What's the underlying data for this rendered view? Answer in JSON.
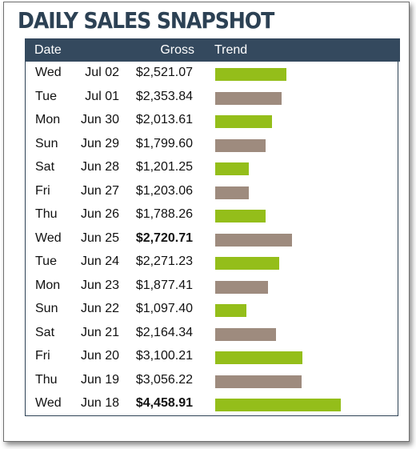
{
  "title": "DAILY SALES SNAPSHOT",
  "headers": {
    "date": "Date",
    "gross": "Gross",
    "trend": "Trend"
  },
  "colors": {
    "header_bg": "#34495e",
    "bar_green": "#94be1a",
    "bar_taupe": "#9e8b7e",
    "title": "#2c4154"
  },
  "chart_data": {
    "type": "table",
    "columns": [
      "Date",
      "Gross",
      "Trend"
    ],
    "rows": [
      {
        "day": "Wed",
        "date": "Jul 02",
        "gross": "$2,521.07",
        "value": 2521.07,
        "color": "green",
        "bold": false
      },
      {
        "day": "Tue",
        "date": "Jul 01",
        "gross": "$2,353.84",
        "value": 2353.84,
        "color": "taupe",
        "bold": false
      },
      {
        "day": "Mon",
        "date": "Jun 30",
        "gross": "$2,013.61",
        "value": 2013.61,
        "color": "green",
        "bold": false
      },
      {
        "day": "Sun",
        "date": "Jun 29",
        "gross": "$1,799.60",
        "value": 1799.6,
        "color": "taupe",
        "bold": false
      },
      {
        "day": "Sat",
        "date": "Jun 28",
        "gross": "$1,201.25",
        "value": 1201.25,
        "color": "green",
        "bold": false
      },
      {
        "day": "Fri",
        "date": "Jun 27",
        "gross": "$1,203.06",
        "value": 1203.06,
        "color": "taupe",
        "bold": false
      },
      {
        "day": "Thu",
        "date": "Jun 26",
        "gross": "$1,788.26",
        "value": 1788.26,
        "color": "green",
        "bold": false
      },
      {
        "day": "Wed",
        "date": "Jun 25",
        "gross": "$2,720.71",
        "value": 2720.71,
        "color": "taupe",
        "bold": true
      },
      {
        "day": "Tue",
        "date": "Jun 24",
        "gross": "$2,271.23",
        "value": 2271.23,
        "color": "green",
        "bold": false
      },
      {
        "day": "Mon",
        "date": "Jun 23",
        "gross": "$1,877.41",
        "value": 1877.41,
        "color": "taupe",
        "bold": false
      },
      {
        "day": "Sun",
        "date": "Jun 22",
        "gross": "$1,097.40",
        "value": 1097.4,
        "color": "green",
        "bold": false
      },
      {
        "day": "Sat",
        "date": "Jun 21",
        "gross": "$2,164.34",
        "value": 2164.34,
        "color": "taupe",
        "bold": false
      },
      {
        "day": "Fri",
        "date": "Jun 20",
        "gross": "$3,100.21",
        "value": 3100.21,
        "color": "green",
        "bold": false
      },
      {
        "day": "Thu",
        "date": "Jun 19",
        "gross": "$3,056.22",
        "value": 3056.22,
        "color": "taupe",
        "bold": false
      },
      {
        "day": "Wed",
        "date": "Jun 18",
        "gross": "$4,458.91",
        "value": 4458.91,
        "color": "green",
        "bold": true
      }
    ]
  }
}
